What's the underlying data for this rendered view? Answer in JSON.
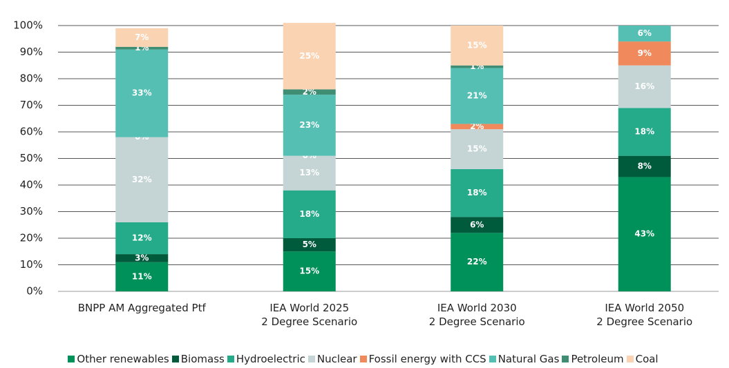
{
  "chart_data": {
    "type": "stacked_bar",
    "categories": [
      "BNPP AM Aggregated Ptf",
      "IEA World 2025\n2 Degree Scenario",
      "IEA World 2030\n2 Degree Scenario",
      "IEA World 2050\n2 Degree Scenario"
    ],
    "series": [
      {
        "name": "Other renewables",
        "color": "#00915a",
        "values": [
          11,
          15,
          22,
          43
        ],
        "value_labels": [
          "11%",
          "15%",
          "22%",
          "43%"
        ]
      },
      {
        "name": "Biomass",
        "color": "#005a3c",
        "values": [
          3,
          5,
          6,
          8
        ],
        "value_labels": [
          "3%",
          "5%",
          "6%",
          "8%"
        ]
      },
      {
        "name": "Hydroelectric",
        "color": "#26ab8a",
        "values": [
          12,
          18,
          18,
          18
        ],
        "value_labels": [
          "12%",
          "18%",
          "18%",
          "18%"
        ]
      },
      {
        "name": "Nuclear",
        "color": "#c5d5d5",
        "values": [
          32,
          13,
          15,
          16
        ],
        "value_labels": [
          "32%",
          "13%",
          "15%",
          "16%"
        ]
      },
      {
        "name": "Fossil energy with CCS",
        "color": "#f08a5d",
        "values": [
          0,
          0,
          2,
          9
        ],
        "value_labels": [
          "0%",
          "0%",
          "2%",
          "9%"
        ]
      },
      {
        "name": "Natural Gas",
        "color": "#55bfb3",
        "values": [
          33,
          23,
          21,
          6
        ],
        "value_labels": [
          "33%",
          "23%",
          "21%",
          "6%"
        ]
      },
      {
        "name": "Petroleum",
        "color": "#3f8d72",
        "values": [
          1,
          2,
          1,
          null
        ],
        "value_labels": [
          "1%",
          "2%",
          "1%",
          null
        ]
      },
      {
        "name": "Coal",
        "color": "#fad3b3",
        "values": [
          7,
          25,
          15,
          null
        ],
        "value_labels": [
          "7%",
          "25%",
          "15%",
          null
        ]
      }
    ],
    "ylim": [
      0,
      100
    ],
    "yticks": [
      {
        "value": 0,
        "label": "0%"
      },
      {
        "value": 10,
        "label": "10%"
      },
      {
        "value": 20,
        "label": "20%"
      },
      {
        "value": 30,
        "label": "30%"
      },
      {
        "value": 40,
        "label": "40%"
      },
      {
        "value": 50,
        "label": "50%"
      },
      {
        "value": 60,
        "label": "60%"
      },
      {
        "value": 70,
        "label": "70%"
      },
      {
        "value": 80,
        "label": "80%"
      },
      {
        "value": 90,
        "label": "90%"
      },
      {
        "value": 100,
        "label": "100%"
      }
    ],
    "grid": true
  }
}
